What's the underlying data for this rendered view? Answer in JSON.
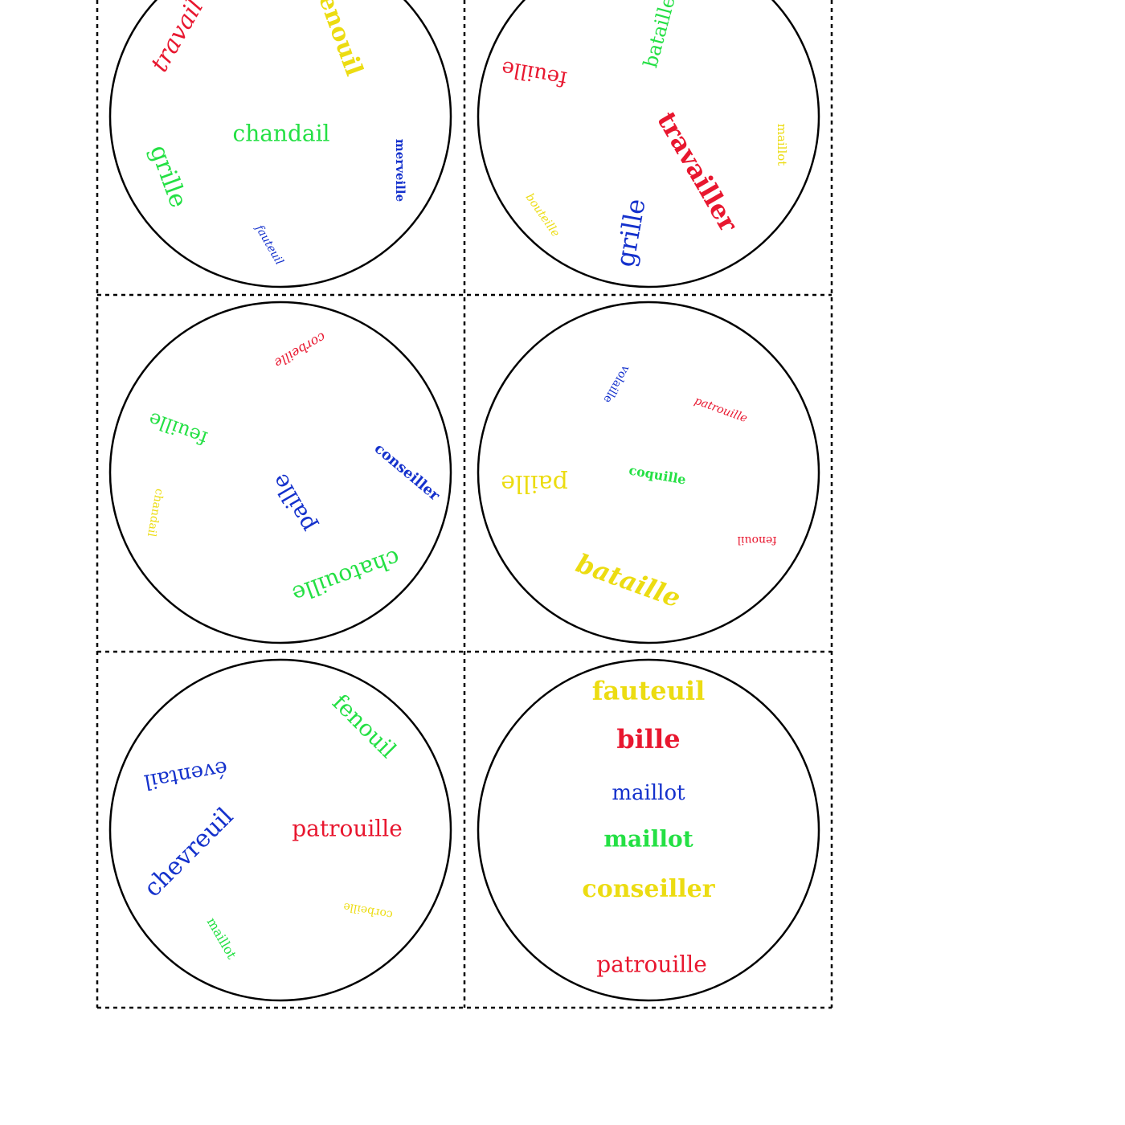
{
  "cards": [
    {
      "words": [
        {
          "text": "travail",
          "color": "#e8172f"
        },
        {
          "text": "fenouil",
          "color": "#ecdc12"
        },
        {
          "text": "chandail",
          "color": "#24e044"
        },
        {
          "text": "merveille",
          "color": "#1431cc"
        },
        {
          "text": "grille",
          "color": "#24e044"
        },
        {
          "text": "fauteuil",
          "color": "#1431cc"
        }
      ]
    },
    {
      "words": [
        {
          "text": "bataille",
          "color": "#24e044"
        },
        {
          "text": "feuille",
          "color": "#e8172f"
        },
        {
          "text": "travailler",
          "color": "#e8172f"
        },
        {
          "text": "maillot",
          "color": "#ecdc12"
        },
        {
          "text": "bouteille",
          "color": "#ecdc12"
        },
        {
          "text": "grille",
          "color": "#1431cc"
        }
      ]
    },
    {
      "words": [
        {
          "text": "corbeille",
          "color": "#e8172f"
        },
        {
          "text": "feuille",
          "color": "#24e044"
        },
        {
          "text": "conseiller",
          "color": "#1431cc"
        },
        {
          "text": "paille",
          "color": "#1431cc"
        },
        {
          "text": "chandail",
          "color": "#ecdc12"
        },
        {
          "text": "chatouille",
          "color": "#24e044"
        }
      ]
    },
    {
      "words": [
        {
          "text": "volaille",
          "color": "#1431cc"
        },
        {
          "text": "patrouille",
          "color": "#e8172f"
        },
        {
          "text": "paille",
          "color": "#ecdc12"
        },
        {
          "text": "coquille",
          "color": "#24e044"
        },
        {
          "text": "fenouil",
          "color": "#e8172f"
        },
        {
          "text": "bataille",
          "color": "#ecdc12"
        }
      ]
    },
    {
      "words": [
        {
          "text": "fenouil",
          "color": "#24e044"
        },
        {
          "text": "éventail",
          "color": "#1431cc"
        },
        {
          "text": "patrouille",
          "color": "#e8172f"
        },
        {
          "text": "chevreuil",
          "color": "#1431cc"
        },
        {
          "text": "corbeille",
          "color": "#ecdc12"
        },
        {
          "text": "maillot",
          "color": "#24e044"
        }
      ]
    },
    {
      "words": [
        {
          "text": "fauteuil",
          "color": "#ecdc12"
        },
        {
          "text": "bille",
          "color": "#e8172f"
        },
        {
          "text": "maillot",
          "color": "#1431cc"
        },
        {
          "text": "maillot",
          "color": "#24e044"
        },
        {
          "text": "conseiller",
          "color": "#ecdc12"
        },
        {
          "text": "patrouille",
          "color": "#e8172f"
        }
      ]
    }
  ]
}
